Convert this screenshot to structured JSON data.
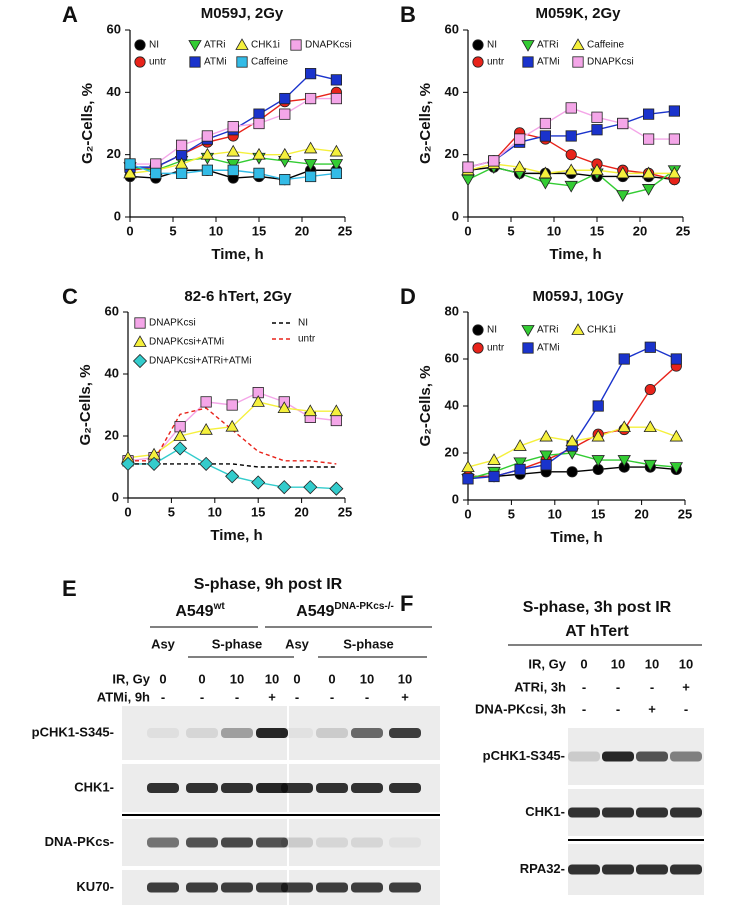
{
  "chart_data": [
    {
      "panel": "A",
      "type": "line",
      "title": "M059J, 2Gy",
      "x_label": "Time, h",
      "y_label": "G₂-Cells, %",
      "x": [
        0,
        3,
        6,
        9,
        12,
        15,
        18,
        21,
        24
      ],
      "xlim": [
        0,
        25
      ],
      "xticks": [
        0,
        5,
        10,
        15,
        20,
        25
      ],
      "ylim": [
        0,
        60
      ],
      "yticks": [
        0,
        20,
        40,
        60
      ],
      "grid": false,
      "series": [
        {
          "name": "NI",
          "color": "#000000",
          "marker": "circle",
          "values": [
            13,
            12.5,
            15,
            15,
            12.5,
            13,
            12,
            15,
            15
          ]
        },
        {
          "name": "untr",
          "color": "#e8231a",
          "marker": "circle",
          "values": [
            15,
            16,
            20,
            24,
            26,
            31,
            37,
            38,
            40
          ]
        },
        {
          "name": "ATRi",
          "color": "#33cc33",
          "marker": "triangle-down",
          "values": [
            16,
            15,
            18,
            19,
            17,
            19,
            18,
            17,
            17
          ]
        },
        {
          "name": "ATMi",
          "color": "#1a33cc",
          "marker": "square",
          "values": [
            16,
            16,
            20,
            25,
            28,
            33,
            38,
            46,
            44
          ]
        },
        {
          "name": "CHK1i",
          "color": "#f5f03c",
          "marker": "triangle-up",
          "values": [
            14,
            15,
            17,
            20,
            21,
            20,
            20,
            22,
            21
          ]
        },
        {
          "name": "DNAPKcsi",
          "color": "#f4a6e8",
          "marker": "square",
          "values": [
            17,
            17,
            23,
            26,
            29,
            30,
            33,
            38,
            38
          ]
        },
        {
          "name": "Caffeine",
          "color": "#33bbe6",
          "marker": "square",
          "values": [
            17,
            14,
            14,
            15,
            15,
            14,
            12,
            13,
            14
          ]
        }
      ]
    },
    {
      "panel": "B",
      "type": "line",
      "title": "M059K, 2Gy",
      "x_label": "Time, h",
      "y_label": "G₂-Cells, %",
      "x": [
        0,
        3,
        6,
        9,
        12,
        15,
        18,
        21,
        24
      ],
      "xlim": [
        0,
        25
      ],
      "xticks": [
        0,
        5,
        10,
        15,
        20,
        25
      ],
      "ylim": [
        0,
        60
      ],
      "yticks": [
        0,
        20,
        40,
        60
      ],
      "grid": false,
      "series": [
        {
          "name": "NI",
          "color": "#000000",
          "marker": "circle",
          "values": [
            15,
            16,
            14,
            14,
            14,
            13,
            13,
            13,
            12
          ]
        },
        {
          "name": "untr",
          "color": "#e8231a",
          "marker": "circle",
          "values": [
            16,
            18,
            27,
            25,
            20,
            17,
            15,
            14,
            12
          ]
        },
        {
          "name": "ATRi",
          "color": "#33cc33",
          "marker": "triangle-down",
          "values": [
            12,
            16,
            14,
            11,
            10,
            14,
            7,
            9,
            15
          ]
        },
        {
          "name": "ATMi",
          "color": "#1a33cc",
          "marker": "square",
          "values": [
            16,
            18,
            24,
            26,
            26,
            28,
            30,
            33,
            34
          ]
        },
        {
          "name": "Caffeine",
          "color": "#f5f03c",
          "marker": "triangle-up",
          "values": [
            15,
            17,
            16,
            14,
            15,
            15,
            14,
            14,
            14
          ]
        },
        {
          "name": "DNAPKcsi",
          "color": "#f4a6e8",
          "marker": "square",
          "values": [
            16,
            18,
            25,
            30,
            35,
            32,
            30,
            25,
            25
          ]
        }
      ]
    },
    {
      "panel": "C",
      "type": "line",
      "title": "82-6 hTert, 2Gy",
      "x_label": "Time, h",
      "y_label": "G₂-Cells, %",
      "x": [
        0,
        3,
        6,
        9,
        12,
        15,
        18,
        21,
        24
      ],
      "xlim": [
        0,
        25
      ],
      "xticks": [
        0,
        5,
        10,
        15,
        20,
        25
      ],
      "ylim": [
        0,
        60
      ],
      "yticks": [
        0,
        20,
        40,
        60
      ],
      "grid": false,
      "series": [
        {
          "name": "DNAPKcsi",
          "color": "#f4a6e8",
          "marker": "square",
          "values": [
            12,
            13,
            23,
            31,
            30,
            34,
            31,
            26,
            25
          ]
        },
        {
          "name": "DNAPKcsi+ATMi",
          "color": "#f5f03c",
          "marker": "triangle-up",
          "values": [
            13,
            14,
            20,
            22,
            23,
            31,
            29,
            28,
            28
          ]
        },
        {
          "name": "DNAPKcsi+ATRi+ATMi",
          "color": "#33cccc",
          "marker": "diamond",
          "values": [
            11,
            11,
            16,
            11,
            7,
            5,
            3.5,
            3.5,
            3
          ]
        },
        {
          "name": "NI",
          "color": "#000000",
          "marker": "none",
          "line_style": "dashed",
          "values": [
            11,
            11,
            11,
            11,
            11,
            10,
            10,
            10,
            10
          ]
        },
        {
          "name": "untr",
          "color": "#e8231a",
          "marker": "none",
          "line_style": "dashed",
          "values": [
            12,
            12,
            27,
            29,
            22,
            15,
            12,
            12,
            11
          ]
        }
      ]
    },
    {
      "panel": "D",
      "type": "line",
      "title": "M059J, 10Gy",
      "x_label": "Time, h",
      "y_label": "G₂-Cells, %",
      "x": [
        0,
        3,
        6,
        9,
        12,
        15,
        18,
        21,
        24
      ],
      "xlim": [
        0,
        25
      ],
      "xticks": [
        0,
        5,
        10,
        15,
        20,
        25
      ],
      "ylim": [
        0,
        80
      ],
      "yticks": [
        0,
        20,
        40,
        60,
        80
      ],
      "grid": false,
      "series": [
        {
          "name": "NI",
          "color": "#000000",
          "marker": "circle",
          "values": [
            10,
            10,
            11,
            12,
            12,
            13,
            14,
            14,
            13
          ]
        },
        {
          "name": "untr",
          "color": "#e8231a",
          "marker": "circle",
          "values": [
            10,
            10,
            13,
            17,
            22,
            28,
            30,
            47,
            57
          ]
        },
        {
          "name": "ATRi",
          "color": "#33cc33",
          "marker": "triangle-down",
          "values": [
            9,
            12,
            16,
            19,
            20,
            17,
            17,
            15,
            14
          ]
        },
        {
          "name": "ATMi",
          "color": "#1a33cc",
          "marker": "square",
          "values": [
            9,
            10,
            13,
            15,
            23,
            40,
            60,
            65,
            60
          ]
        },
        {
          "name": "CHK1i",
          "color": "#f5f03c",
          "marker": "triangle-up",
          "values": [
            14,
            17,
            23,
            27,
            25,
            27,
            31,
            31,
            27
          ]
        }
      ]
    }
  ],
  "blots": [
    {
      "panel": "E",
      "title": "S-phase, 9h post IR",
      "groups": [
        {
          "name": "A549",
          "superscript": "wt",
          "phases": [
            "Asy",
            "S-phase"
          ]
        },
        {
          "name": "A549",
          "superscript": "DNA-PKcs-/-",
          "phases": [
            "Asy",
            "S-phase"
          ]
        }
      ],
      "conditions": [
        {
          "label": "IR, Gy",
          "values": [
            0,
            0,
            10,
            10,
            0,
            0,
            10,
            10
          ]
        },
        {
          "label": "ATMi, 9h",
          "values": [
            "-",
            "-",
            "-",
            "+",
            "-",
            "-",
            "-",
            "+"
          ]
        }
      ],
      "rows": [
        "pCHK1-S345-",
        "CHK1-",
        "DNA-PKcs-",
        "KU70-"
      ]
    },
    {
      "panel": "F",
      "title": "S-phase, 3h post IR",
      "cell_line": "AT hTert",
      "conditions": [
        {
          "label": "IR, Gy",
          "values": [
            0,
            10,
            10,
            10
          ]
        },
        {
          "label": "ATRi, 3h",
          "values": [
            "-",
            "-",
            "-",
            "+"
          ]
        },
        {
          "label": "DNA-PKcsi, 3h",
          "values": [
            "-",
            "-",
            "+",
            "-"
          ]
        }
      ],
      "rows": [
        "pCHK1-S345-",
        "CHK1-",
        "RPA32-"
      ]
    }
  ]
}
